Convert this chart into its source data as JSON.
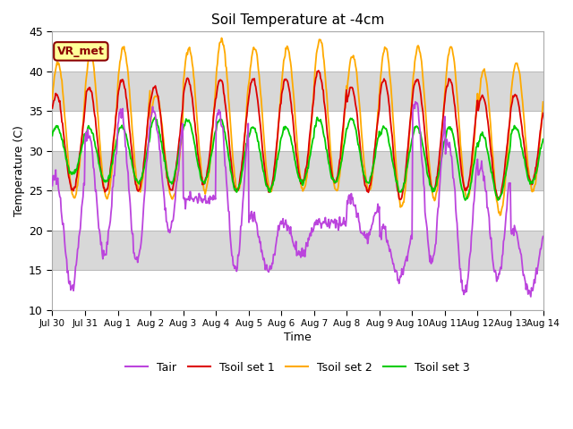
{
  "title": "Soil Temperature at -4cm",
  "xlabel": "Time",
  "ylabel": "Temperature (C)",
  "ylim": [
    10,
    45
  ],
  "yticks": [
    10,
    15,
    20,
    25,
    30,
    35,
    40,
    45
  ],
  "xtick_labels": [
    "Jul 30",
    "Jul 31",
    "Aug 1",
    "Aug 2",
    "Aug 3",
    "Aug 4",
    "Aug 5",
    "Aug 6",
    "Aug 7",
    "Aug 8",
    "Aug 9",
    "Aug 10",
    "Aug 11",
    "Aug 12",
    "Aug 13",
    "Aug 14"
  ],
  "colors": {
    "Tair": "#bb44dd",
    "Tsoil1": "#dd0000",
    "Tsoil2": "#ffaa00",
    "Tsoil3": "#00cc00"
  },
  "legend_labels": [
    "Tair",
    "Tsoil set 1",
    "Tsoil set 2",
    "Tsoil set 3"
  ],
  "annotation_text": "VR_met",
  "annotation_color": "#8b0000",
  "annotation_bg": "#ffff99",
  "band_color": "#d8d8d8",
  "background_color": "#ffffff",
  "n_days": 15,
  "pts_per_day": 48,
  "tair_day_max": [
    27,
    32,
    35,
    35,
    24,
    35,
    22,
    21,
    21,
    24,
    20,
    36,
    31,
    28,
    20
  ],
  "tair_night_min": [
    13,
    17,
    16,
    20,
    24,
    15,
    15,
    17,
    21,
    19,
    14,
    16,
    12,
    14,
    12
  ],
  "tsoil1_day_max": [
    37,
    38,
    39,
    38,
    39,
    39,
    39,
    39,
    40,
    38,
    39,
    39,
    39,
    37,
    37
  ],
  "tsoil1_night_min": [
    25,
    25,
    25,
    25,
    26,
    25,
    25,
    26,
    26,
    25,
    24,
    25,
    25,
    24,
    26
  ],
  "tsoil2_day_max": [
    41,
    42,
    43,
    37,
    43,
    44,
    43,
    43,
    44,
    42,
    43,
    43,
    43,
    40,
    41
  ],
  "tsoil2_night_min": [
    24,
    24,
    25,
    24,
    25,
    25,
    25,
    25,
    25,
    25,
    23,
    24,
    24,
    22,
    25
  ],
  "tsoil3_day_max": [
    33,
    33,
    33,
    34,
    34,
    34,
    33,
    33,
    34,
    34,
    33,
    33,
    33,
    32,
    33
  ],
  "tsoil3_night_min": [
    27,
    26,
    26,
    26,
    26,
    25,
    25,
    26,
    26,
    26,
    25,
    25,
    24,
    24,
    26
  ]
}
